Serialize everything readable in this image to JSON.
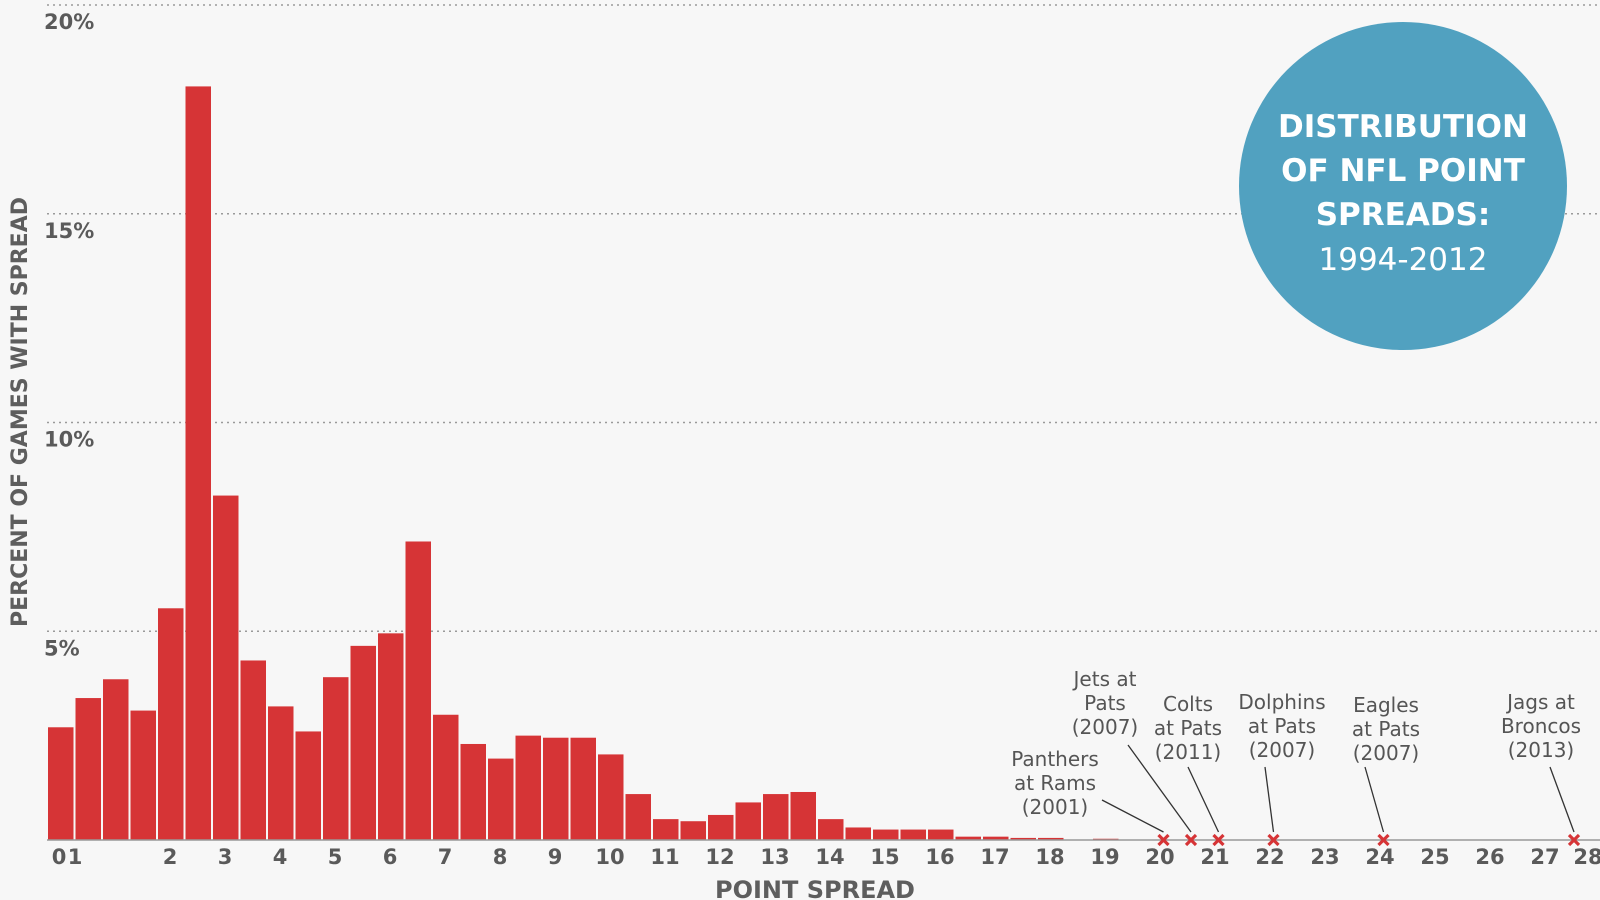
{
  "chart_data": {
    "type": "bar",
    "title_lines": [
      "DISTRIBUTION",
      "OF NFL POINT",
      "SPREADS:",
      "1994-2012"
    ],
    "xlabel": "POINT SPREAD",
    "ylabel": "PERCENT OF GAMES WITH SPREAD",
    "ylim": [
      0,
      20
    ],
    "xlim": [
      0,
      28
    ],
    "y_ticks": [
      {
        "value": 5,
        "label": "5%"
      },
      {
        "value": 10,
        "label": "10%"
      },
      {
        "value": 15,
        "label": "15%"
      },
      {
        "value": 20,
        "label": "20%"
      }
    ],
    "x_ticks": [
      "0",
      "1",
      "2",
      "3",
      "4",
      "5",
      "6",
      "7",
      "8",
      "9",
      "10",
      "11",
      "12",
      "13",
      "14",
      "15",
      "16",
      "17",
      "18",
      "19",
      "20",
      "21",
      "22",
      "23",
      "24",
      "25",
      "26",
      "27",
      "28"
    ],
    "grid": true,
    "colors": {
      "bar": "#d63436",
      "badge": "#51a1c0",
      "marker": "#d63436",
      "grid": "#9a9a9a",
      "axis": "#999999"
    },
    "bar_width": 0.5,
    "bars": [
      {
        "x": 0,
        "value": 2.7
      },
      {
        "x": 0.5,
        "value": 3.4
      },
      {
        "x": 1,
        "value": 3.85
      },
      {
        "x": 1.5,
        "value": 3.1
      },
      {
        "x": 2,
        "value": 5.55
      },
      {
        "x": 2.5,
        "value": 18.05
      },
      {
        "x": 3,
        "value": 8.25
      },
      {
        "x": 3.5,
        "value": 4.3
      },
      {
        "x": 4,
        "value": 3.2
      },
      {
        "x": 4.5,
        "value": 2.6
      },
      {
        "x": 5,
        "value": 3.9
      },
      {
        "x": 5.5,
        "value": 4.65
      },
      {
        "x": 6,
        "value": 4.95
      },
      {
        "x": 6.5,
        "value": 7.15
      },
      {
        "x": 7,
        "value": 3.0
      },
      {
        "x": 7.5,
        "value": 2.3
      },
      {
        "x": 8,
        "value": 1.95
      },
      {
        "x": 8.5,
        "value": 2.5
      },
      {
        "x": 9,
        "value": 2.45
      },
      {
        "x": 9.5,
        "value": 2.45
      },
      {
        "x": 10,
        "value": 2.05
      },
      {
        "x": 10.5,
        "value": 1.1
      },
      {
        "x": 11,
        "value": 0.5
      },
      {
        "x": 11.5,
        "value": 0.45
      },
      {
        "x": 12,
        "value": 0.6
      },
      {
        "x": 12.5,
        "value": 0.9
      },
      {
        "x": 13,
        "value": 1.1
      },
      {
        "x": 13.5,
        "value": 1.15
      },
      {
        "x": 14,
        "value": 0.5
      },
      {
        "x": 14.5,
        "value": 0.3
      },
      {
        "x": 15,
        "value": 0.25
      },
      {
        "x": 15.5,
        "value": 0.25
      },
      {
        "x": 16,
        "value": 0.25
      },
      {
        "x": 16.5,
        "value": 0.08
      },
      {
        "x": 17,
        "value": 0.08
      },
      {
        "x": 17.5,
        "value": 0.05
      },
      {
        "x": 18,
        "value": 0.05
      },
      {
        "x": 19,
        "value": 0.03
      }
    ],
    "annotations": [
      {
        "x": 20.5,
        "lines": [
          "Panthers",
          "at Rams",
          "(2001)"
        ]
      },
      {
        "x": 21,
        "lines": [
          "Jets at",
          "Pats",
          "(2007)"
        ]
      },
      {
        "x": 21.5,
        "lines": [
          "Colts",
          "at Pats",
          "(2011)"
        ]
      },
      {
        "x": 22.5,
        "lines": [
          "Dolphins",
          "at Pats",
          "(2007)"
        ]
      },
      {
        "x": 24.5,
        "lines": [
          "Eagles",
          "at Pats",
          "(2007)"
        ]
      },
      {
        "x": 28.5,
        "lines": [
          "Jags at",
          "Broncos",
          "(2013)"
        ]
      }
    ]
  }
}
